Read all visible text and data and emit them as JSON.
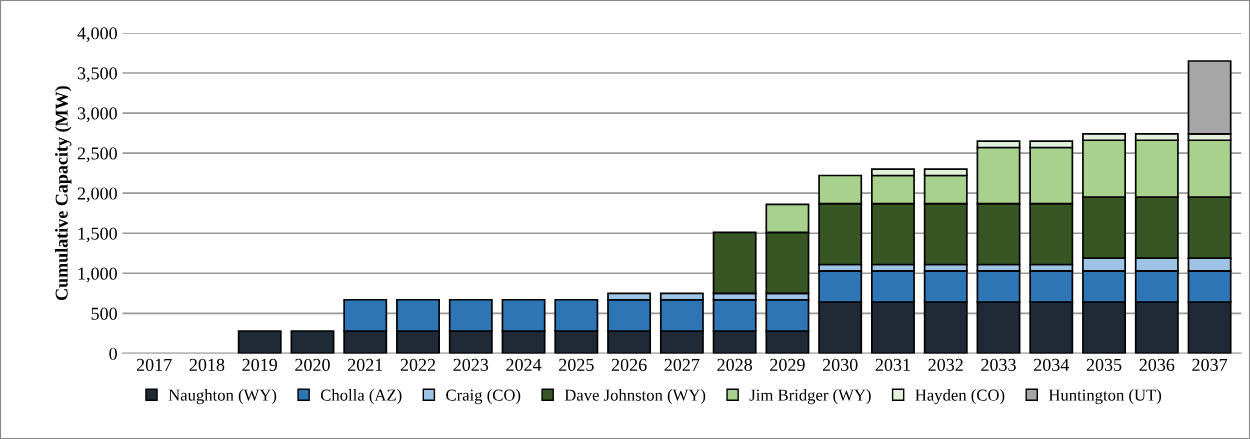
{
  "chart_data": {
    "type": "bar",
    "stacked": true,
    "ylabel": "Cumulative Capacity (MW)",
    "categories": [
      "2017",
      "2018",
      "2019",
      "2020",
      "2021",
      "2022",
      "2023",
      "2024",
      "2025",
      "2026",
      "2027",
      "2028",
      "2029",
      "2030",
      "2031",
      "2032",
      "2033",
      "2034",
      "2035",
      "2036",
      "2037"
    ],
    "series": [
      {
        "name": "Naughton (WY)",
        "color": "#1f2a36",
        "values": [
          0,
          0,
          280,
          280,
          280,
          280,
          280,
          280,
          280,
          280,
          280,
          280,
          280,
          640,
          640,
          640,
          640,
          640,
          640,
          640,
          640
        ]
      },
      {
        "name": "Cholla (AZ)",
        "color": "#2e75b6",
        "values": [
          0,
          0,
          0,
          0,
          390,
          390,
          390,
          390,
          390,
          390,
          390,
          390,
          390,
          390,
          390,
          390,
          390,
          390,
          390,
          390,
          390
        ]
      },
      {
        "name": "Craig (CO)",
        "color": "#9dc3e6",
        "values": [
          0,
          0,
          0,
          0,
          0,
          0,
          0,
          0,
          0,
          80,
          80,
          80,
          80,
          80,
          80,
          80,
          80,
          80,
          160,
          160,
          160
        ]
      },
      {
        "name": "Dave Johnston (WY)",
        "color": "#375623",
        "values": [
          0,
          0,
          0,
          0,
          0,
          0,
          0,
          0,
          0,
          0,
          0,
          760,
          760,
          760,
          760,
          760,
          760,
          760,
          760,
          760,
          760
        ]
      },
      {
        "name": "Jim Bridger (WY)",
        "color": "#a9d18e",
        "values": [
          0,
          0,
          0,
          0,
          0,
          0,
          0,
          0,
          0,
          0,
          0,
          0,
          350,
          350,
          350,
          350,
          700,
          700,
          710,
          710,
          710
        ]
      },
      {
        "name": "Hayden (CO)",
        "color": "#e2efda",
        "values": [
          0,
          0,
          0,
          0,
          0,
          0,
          0,
          0,
          0,
          0,
          0,
          0,
          0,
          0,
          80,
          80,
          80,
          80,
          80,
          80,
          80
        ]
      },
      {
        "name": "Huntington (UT)",
        "color": "#a6a6a6",
        "values": [
          0,
          0,
          0,
          0,
          0,
          0,
          0,
          0,
          0,
          0,
          0,
          0,
          0,
          0,
          0,
          0,
          0,
          0,
          0,
          0,
          910
        ]
      }
    ],
    "ylim": [
      0,
      4000
    ],
    "yticks": [
      {
        "value": 0,
        "label": "0"
      },
      {
        "value": 500,
        "label": "500"
      },
      {
        "value": 1000,
        "label": "1,000"
      },
      {
        "value": 1500,
        "label": "1,500"
      },
      {
        "value": 2000,
        "label": "2,000"
      },
      {
        "value": 2500,
        "label": "2,500"
      },
      {
        "value": 3000,
        "label": "3,000"
      },
      {
        "value": 3500,
        "label": "3,500"
      },
      {
        "value": 4000,
        "label": "4,000"
      }
    ],
    "grid": "y",
    "legend": "bottom",
    "marker": "square"
  }
}
